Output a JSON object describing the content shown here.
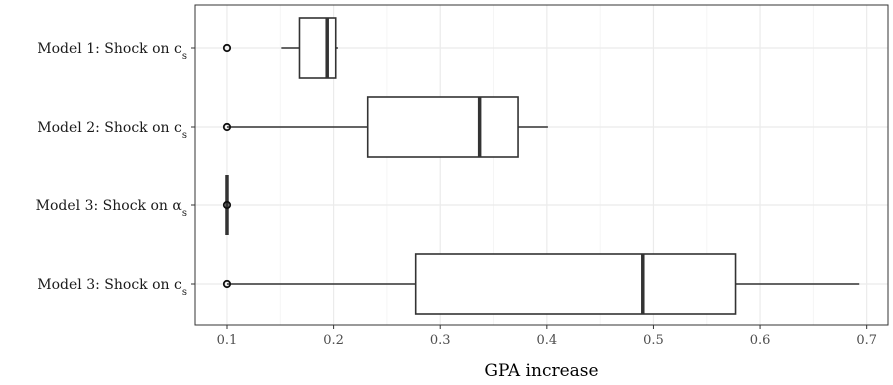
{
  "chart_data": {
    "type": "boxplot",
    "orientation": "horizontal",
    "xlabel": "GPA increase",
    "ylabel": "",
    "xlim": [
      0.07,
      0.72
    ],
    "x_ticks": [
      "0.1",
      "0.2",
      "0.3",
      "0.4",
      "0.5",
      "0.6",
      "0.7"
    ],
    "grid": true,
    "legend": "none",
    "colors": {
      "box_stroke": "#333333",
      "grid_major": "#ebebeb",
      "grid_minor": "#f5f5f5",
      "panel_border": "#333333"
    },
    "categories": [
      {
        "label": "Model 1: Shock on c",
        "subscript": "s"
      },
      {
        "label": "Model 2: Shock on c",
        "subscript": "s"
      },
      {
        "label": "Model 3: Shock on α",
        "subscript": "s"
      },
      {
        "label": "Model 3: Shock on c",
        "subscript": "s"
      }
    ],
    "boxes": [
      {
        "whisker_low": 0.151,
        "q1": 0.168,
        "median": 0.194,
        "q3": 0.202,
        "whisker_high": 0.204,
        "outliers": [
          0.1
        ]
      },
      {
        "whisker_low": 0.1,
        "q1": 0.232,
        "median": 0.337,
        "q3": 0.373,
        "whisker_high": 0.401,
        "outliers": [
          0.1
        ]
      },
      {
        "whisker_low": 0.1,
        "q1": 0.1,
        "median": 0.1,
        "q3": 0.1,
        "whisker_high": 0.1,
        "outliers": [
          0.1
        ]
      },
      {
        "whisker_low": 0.1,
        "q1": 0.277,
        "median": 0.49,
        "q3": 0.577,
        "whisker_high": 0.693,
        "outliers": [
          0.1
        ]
      }
    ]
  }
}
